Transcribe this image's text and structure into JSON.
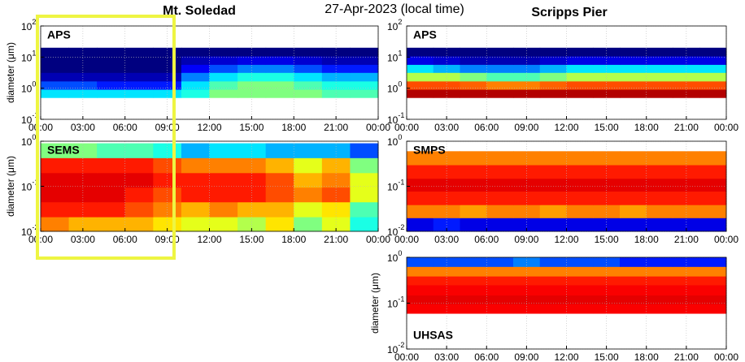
{
  "header": {
    "left_title": "Mt. Soledad",
    "center_title": "27-Apr-2023 (local time)",
    "right_title": "Scripps Pier"
  },
  "chart_data": [
    {
      "type": "heatmap",
      "label": "APS",
      "ylabel": "diameter (μm)",
      "grid": true,
      "xlim": [
        0,
        24
      ],
      "xticks": [
        {
          "value": 0,
          "label": "00:00"
        },
        {
          "value": 3,
          "label": "03:00"
        },
        {
          "value": 6,
          "label": "06:00"
        },
        {
          "value": 9,
          "label": "09:00"
        },
        {
          "value": 12,
          "label": "12:00"
        },
        {
          "value": 15,
          "label": "15:00"
        },
        {
          "value": 18,
          "label": "18:00"
        },
        {
          "value": 21,
          "label": "21:00"
        },
        {
          "value": 24,
          "label": "00:00"
        }
      ],
      "ylim": [
        0.1,
        100
      ],
      "log_y": true,
      "yticks": [
        {
          "value": 0.1,
          "label": "10",
          "exp": "-1"
        },
        {
          "value": 1,
          "label": "10",
          "exp": "0"
        },
        {
          "value": 10,
          "label": "10",
          "exp": "1"
        },
        {
          "value": 100,
          "label": "10",
          "exp": "2"
        }
      ],
      "time_bins": [
        0,
        2,
        4,
        6,
        8,
        10,
        12,
        14,
        16,
        18,
        20,
        22,
        24
      ],
      "d_bins": [
        0.5,
        0.92,
        1.7,
        3.2,
        5.8,
        10.8,
        20
      ],
      "z": [
        [
          0.35,
          0.35,
          0.35,
          0.35,
          0.35,
          0.4,
          0.5,
          0.5,
          0.5,
          0.5,
          0.45,
          0.45
        ],
        [
          0.2,
          0.2,
          0.15,
          0.15,
          0.15,
          0.35,
          0.45,
          0.5,
          0.5,
          0.45,
          0.4,
          0.4
        ],
        [
          0.05,
          0.05,
          0.05,
          0.05,
          0.05,
          0.25,
          0.35,
          0.4,
          0.4,
          0.35,
          0.3,
          0.3
        ],
        [
          0,
          0,
          0,
          0,
          0,
          0.12,
          0.2,
          0.25,
          0.25,
          0.2,
          0.15,
          0.15
        ],
        [
          0,
          0,
          0,
          0,
          0,
          0.05,
          0.08,
          0.1,
          0.1,
          0.08,
          0.05,
          0.05
        ],
        [
          0,
          0,
          0,
          0,
          0,
          0,
          0,
          0,
          0,
          0,
          0,
          0
        ]
      ]
    },
    {
      "type": "heatmap",
      "label": "SEMS",
      "ylabel": "diameter (μm)",
      "grid": true,
      "xlim": [
        0,
        24
      ],
      "xticks": [
        {
          "value": 0,
          "label": "00:00"
        },
        {
          "value": 3,
          "label": "03:00"
        },
        {
          "value": 6,
          "label": "06:00"
        },
        {
          "value": 9,
          "label": "09:00"
        },
        {
          "value": 12,
          "label": "12:00"
        },
        {
          "value": 15,
          "label": "15:00"
        },
        {
          "value": 18,
          "label": "18:00"
        },
        {
          "value": 21,
          "label": "21:00"
        },
        {
          "value": 24,
          "label": "00:00"
        }
      ],
      "ylim": [
        0.01,
        1
      ],
      "log_y": true,
      "yticks": [
        {
          "value": 0.01,
          "label": "10",
          "exp": "-2"
        },
        {
          "value": 0.1,
          "label": "10",
          "exp": "-1"
        },
        {
          "value": 1,
          "label": "10",
          "exp": "0"
        }
      ],
      "time_bins": [
        0,
        2,
        4,
        6,
        8,
        10,
        12,
        14,
        16,
        18,
        20,
        22,
        24
      ],
      "d_bins": [
        0.01,
        0.021,
        0.045,
        0.095,
        0.2,
        0.43,
        0.9
      ],
      "z": [
        [
          0.75,
          0.7,
          0.7,
          0.7,
          0.65,
          0.6,
          0.6,
          0.55,
          0.65,
          0.5,
          0.6,
          0.4
        ],
        [
          0.85,
          0.85,
          0.85,
          0.8,
          0.75,
          0.7,
          0.75,
          0.7,
          0.7,
          0.6,
          0.65,
          0.45
        ],
        [
          0.9,
          0.9,
          0.9,
          0.85,
          0.8,
          0.85,
          0.85,
          0.85,
          0.8,
          0.75,
          0.8,
          0.6
        ],
        [
          0.9,
          0.9,
          0.9,
          0.9,
          0.85,
          0.85,
          0.85,
          0.85,
          0.8,
          0.7,
          0.75,
          0.6
        ],
        [
          0.85,
          0.85,
          0.85,
          0.85,
          0.8,
          0.75,
          0.75,
          0.75,
          0.7,
          0.6,
          0.7,
          0.5
        ],
        [
          0.5,
          0.5,
          0.45,
          0.45,
          0.4,
          0.3,
          0.35,
          0.35,
          0.3,
          0.3,
          0.3,
          0.2
        ]
      ]
    },
    {
      "type": "heatmap",
      "label": "APS",
      "grid": true,
      "xlim": [
        0,
        24
      ],
      "xticks": [
        {
          "value": 0,
          "label": "00:00"
        },
        {
          "value": 3,
          "label": "03:00"
        },
        {
          "value": 6,
          "label": "06:00"
        },
        {
          "value": 9,
          "label": "09:00"
        },
        {
          "value": 12,
          "label": "12:00"
        },
        {
          "value": 15,
          "label": "15:00"
        },
        {
          "value": 18,
          "label": "18:00"
        },
        {
          "value": 21,
          "label": "21:00"
        },
        {
          "value": 24,
          "label": "00:00"
        }
      ],
      "ylim": [
        0.1,
        100
      ],
      "log_y": true,
      "yticks": [
        {
          "value": 0.1,
          "label": "10",
          "exp": "-1"
        },
        {
          "value": 1,
          "label": "10",
          "exp": "0"
        },
        {
          "value": 10,
          "label": "10",
          "exp": "1"
        },
        {
          "value": 100,
          "label": "10",
          "exp": "2"
        }
      ],
      "time_bins": [
        0,
        2,
        4,
        6,
        8,
        10,
        12,
        14,
        16,
        18,
        20,
        22,
        24
      ],
      "d_bins": [
        0.5,
        0.92,
        1.7,
        3.2,
        5.8,
        10.8,
        20
      ],
      "z": [
        [
          0.95,
          0.95,
          0.95,
          0.95,
          0.95,
          0.95,
          0.95,
          0.95,
          0.95,
          0.95,
          0.95,
          0.95
        ],
        [
          0.8,
          0.8,
          0.78,
          0.75,
          0.75,
          0.78,
          0.8,
          0.8,
          0.8,
          0.8,
          0.8,
          0.8
        ],
        [
          0.55,
          0.55,
          0.5,
          0.45,
          0.45,
          0.5,
          0.55,
          0.55,
          0.55,
          0.55,
          0.55,
          0.55
        ],
        [
          0.35,
          0.3,
          0.25,
          0.25,
          0.25,
          0.3,
          0.35,
          0.35,
          0.35,
          0.35,
          0.35,
          0.35
        ],
        [
          0.1,
          0.08,
          0.05,
          0.05,
          0.05,
          0.08,
          0.1,
          0.1,
          0.1,
          0.1,
          0.1,
          0.1
        ],
        [
          0,
          0,
          0,
          0,
          0,
          0,
          0,
          0,
          0,
          0,
          0,
          0
        ]
      ]
    },
    {
      "type": "heatmap",
      "label": "SMPS",
      "grid": true,
      "xlim": [
        0,
        24
      ],
      "xticks": [
        {
          "value": 0,
          "label": "00:00"
        },
        {
          "value": 3,
          "label": "03:00"
        },
        {
          "value": 6,
          "label": "06:00"
        },
        {
          "value": 9,
          "label": "09:00"
        },
        {
          "value": 12,
          "label": "12:00"
        },
        {
          "value": 15,
          "label": "15:00"
        },
        {
          "value": 18,
          "label": "18:00"
        },
        {
          "value": 21,
          "label": "21:00"
        },
        {
          "value": 24,
          "label": "00:00"
        }
      ],
      "ylim": [
        0.01,
        1
      ],
      "log_y": true,
      "yticks": [
        {
          "value": 0.01,
          "label": "10",
          "exp": "-2"
        },
        {
          "value": 0.1,
          "label": "10",
          "exp": "-1"
        },
        {
          "value": 1,
          "label": "10",
          "exp": "0"
        }
      ],
      "time_bins": [
        0,
        2,
        4,
        6,
        8,
        10,
        12,
        14,
        16,
        18,
        20,
        22,
        24
      ],
      "d_bins": [
        0.01,
        0.02,
        0.039,
        0.078,
        0.15,
        0.3,
        0.6
      ],
      "z": [
        [
          0.1,
          0.15,
          0.1,
          0.1,
          0.1,
          0.1,
          0.1,
          0.1,
          0.1,
          0.1,
          0.1,
          0.1
        ],
        [
          0.75,
          0.75,
          0.72,
          0.75,
          0.75,
          0.72,
          0.75,
          0.75,
          0.72,
          0.75,
          0.75,
          0.75
        ],
        [
          0.85,
          0.85,
          0.85,
          0.85,
          0.85,
          0.85,
          0.85,
          0.85,
          0.85,
          0.85,
          0.85,
          0.85
        ],
        [
          0.9,
          0.9,
          0.9,
          0.9,
          0.9,
          0.9,
          0.9,
          0.9,
          0.9,
          0.9,
          0.9,
          0.9
        ],
        [
          0.85,
          0.85,
          0.85,
          0.85,
          0.85,
          0.85,
          0.85,
          0.85,
          0.85,
          0.85,
          0.85,
          0.85
        ],
        [
          0.75,
          0.75,
          0.75,
          0.75,
          0.75,
          0.75,
          0.75,
          0.75,
          0.75,
          0.75,
          0.75,
          0.75
        ]
      ]
    },
    {
      "type": "heatmap",
      "label": "UHSAS",
      "ylabel": "diameter (μm)",
      "grid": true,
      "xlim": [
        0,
        24
      ],
      "xticks": [
        {
          "value": 0,
          "label": "00:00"
        },
        {
          "value": 3,
          "label": "03:00"
        },
        {
          "value": 6,
          "label": "06:00"
        },
        {
          "value": 9,
          "label": "09:00"
        },
        {
          "value": 12,
          "label": "12:00"
        },
        {
          "value": 15,
          "label": "15:00"
        },
        {
          "value": 18,
          "label": "18:00"
        },
        {
          "value": 21,
          "label": "21:00"
        },
        {
          "value": 24,
          "label": "00:00"
        }
      ],
      "ylim": [
        0.01,
        1
      ],
      "log_y": true,
      "yticks": [
        {
          "value": 0.01,
          "label": "10",
          "exp": "-2"
        },
        {
          "value": 0.1,
          "label": "10",
          "exp": "-1"
        },
        {
          "value": 1,
          "label": "10",
          "exp": "0"
        }
      ],
      "time_bins": [
        0,
        2,
        4,
        6,
        8,
        10,
        12,
        14,
        16,
        18,
        20,
        22,
        24
      ],
      "d_bins": [
        0.06,
        0.096,
        0.15,
        0.25,
        0.39,
        0.63,
        1
      ],
      "z": [
        [
          0.88,
          0.88,
          0.88,
          0.88,
          0.88,
          0.88,
          0.88,
          0.88,
          0.88,
          0.88,
          0.88,
          0.88
        ],
        [
          0.9,
          0.9,
          0.9,
          0.9,
          0.9,
          0.9,
          0.9,
          0.9,
          0.9,
          0.9,
          0.9,
          0.9
        ],
        [
          0.88,
          0.88,
          0.88,
          0.88,
          0.88,
          0.88,
          0.88,
          0.88,
          0.88,
          0.88,
          0.88,
          0.88
        ],
        [
          0.85,
          0.85,
          0.85,
          0.85,
          0.85,
          0.85,
          0.85,
          0.85,
          0.85,
          0.85,
          0.85,
          0.85
        ],
        [
          0.75,
          0.75,
          0.75,
          0.75,
          0.75,
          0.75,
          0.75,
          0.75,
          0.75,
          0.75,
          0.75,
          0.75
        ],
        [
          0.2,
          0.2,
          0.2,
          0.2,
          0.25,
          0.2,
          0.2,
          0.2,
          0.15,
          0.15,
          0.15,
          0.15
        ]
      ]
    }
  ]
}
